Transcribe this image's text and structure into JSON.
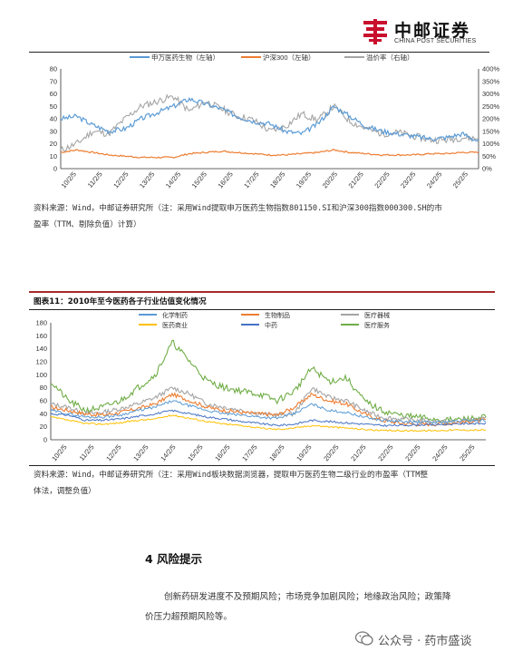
{
  "header": {
    "logo_cn": "中邮证券",
    "logo_en": "CHINA POST SECURITIES"
  },
  "chart1": {
    "legend": [
      "申万医药生物（左轴）",
      "沪深300（左轴）",
      "溢价率（右轴）"
    ],
    "colors": {
      "pharma": "#5b9bd5",
      "hs300": "#ed7d31",
      "premium": "#a5a5a5"
    },
    "left_ticks": [
      "80",
      "70",
      "60",
      "50",
      "40",
      "30",
      "20",
      "10",
      "0"
    ],
    "right_ticks": [
      "400%",
      "350%",
      "300%",
      "250%",
      "200%",
      "150%",
      "100%",
      "50%",
      "0%"
    ],
    "x_ticks": [
      "10/2/5",
      "11/2/5",
      "12/2/5",
      "13/2/5",
      "14/2/5",
      "15/2/5",
      "16/2/5",
      "17/2/5",
      "18/2/5",
      "19/2/5",
      "20/2/5",
      "21/2/5",
      "22/2/5",
      "23/2/5",
      "24/2/5",
      "25/2/5"
    ],
    "source_line1": "资料来源：Wind，中邮证券研究所（注：采用Wind提取申万医药生物指数801150.SI和沪深300指数000300.SH的市",
    "source_line2": "盈率（TTM、剔除负值）计算）"
  },
  "chart2": {
    "title": "图表11：2010年至今医药各子行业估值变化情况",
    "legend": [
      "化学制药",
      "生物制品",
      "医疗器械",
      "医药商业",
      "中药",
      "医疗服务"
    ],
    "colors": {
      "chem": "#5b9bd5",
      "bio": "#ed7d31",
      "device": "#a5a5a5",
      "commerce": "#ffc000",
      "tcm": "#4472c4",
      "service": "#70ad47"
    },
    "left_ticks": [
      "180",
      "160",
      "140",
      "120",
      "100",
      "80",
      "60",
      "40",
      "20",
      "0"
    ],
    "x_ticks": [
      "10/2/5",
      "11/2/5",
      "12/2/5",
      "13/2/5",
      "14/2/5",
      "15/2/5",
      "16/2/5",
      "17/2/5",
      "18/2/5",
      "19/2/5",
      "20/2/5",
      "21/2/5",
      "22/2/5",
      "23/2/5",
      "24/2/5",
      "25/2/5"
    ],
    "source_line1": "资料来源：Wind，中邮证券研究所（注：采用Wind板块数据浏览器，提取申万医药生物二级行业的市盈率（TTM整",
    "source_line2": "体法，调整负值）"
  },
  "section": {
    "title": "4 风险提示",
    "body_line1": "创新药研发进度不及预期风险；市场竞争加剧风险；地缘政治风险；政策降",
    "body_line2": "价压力超预期风险等。"
  },
  "watermark": {
    "text": "公众号 · 药市盛谈"
  }
}
